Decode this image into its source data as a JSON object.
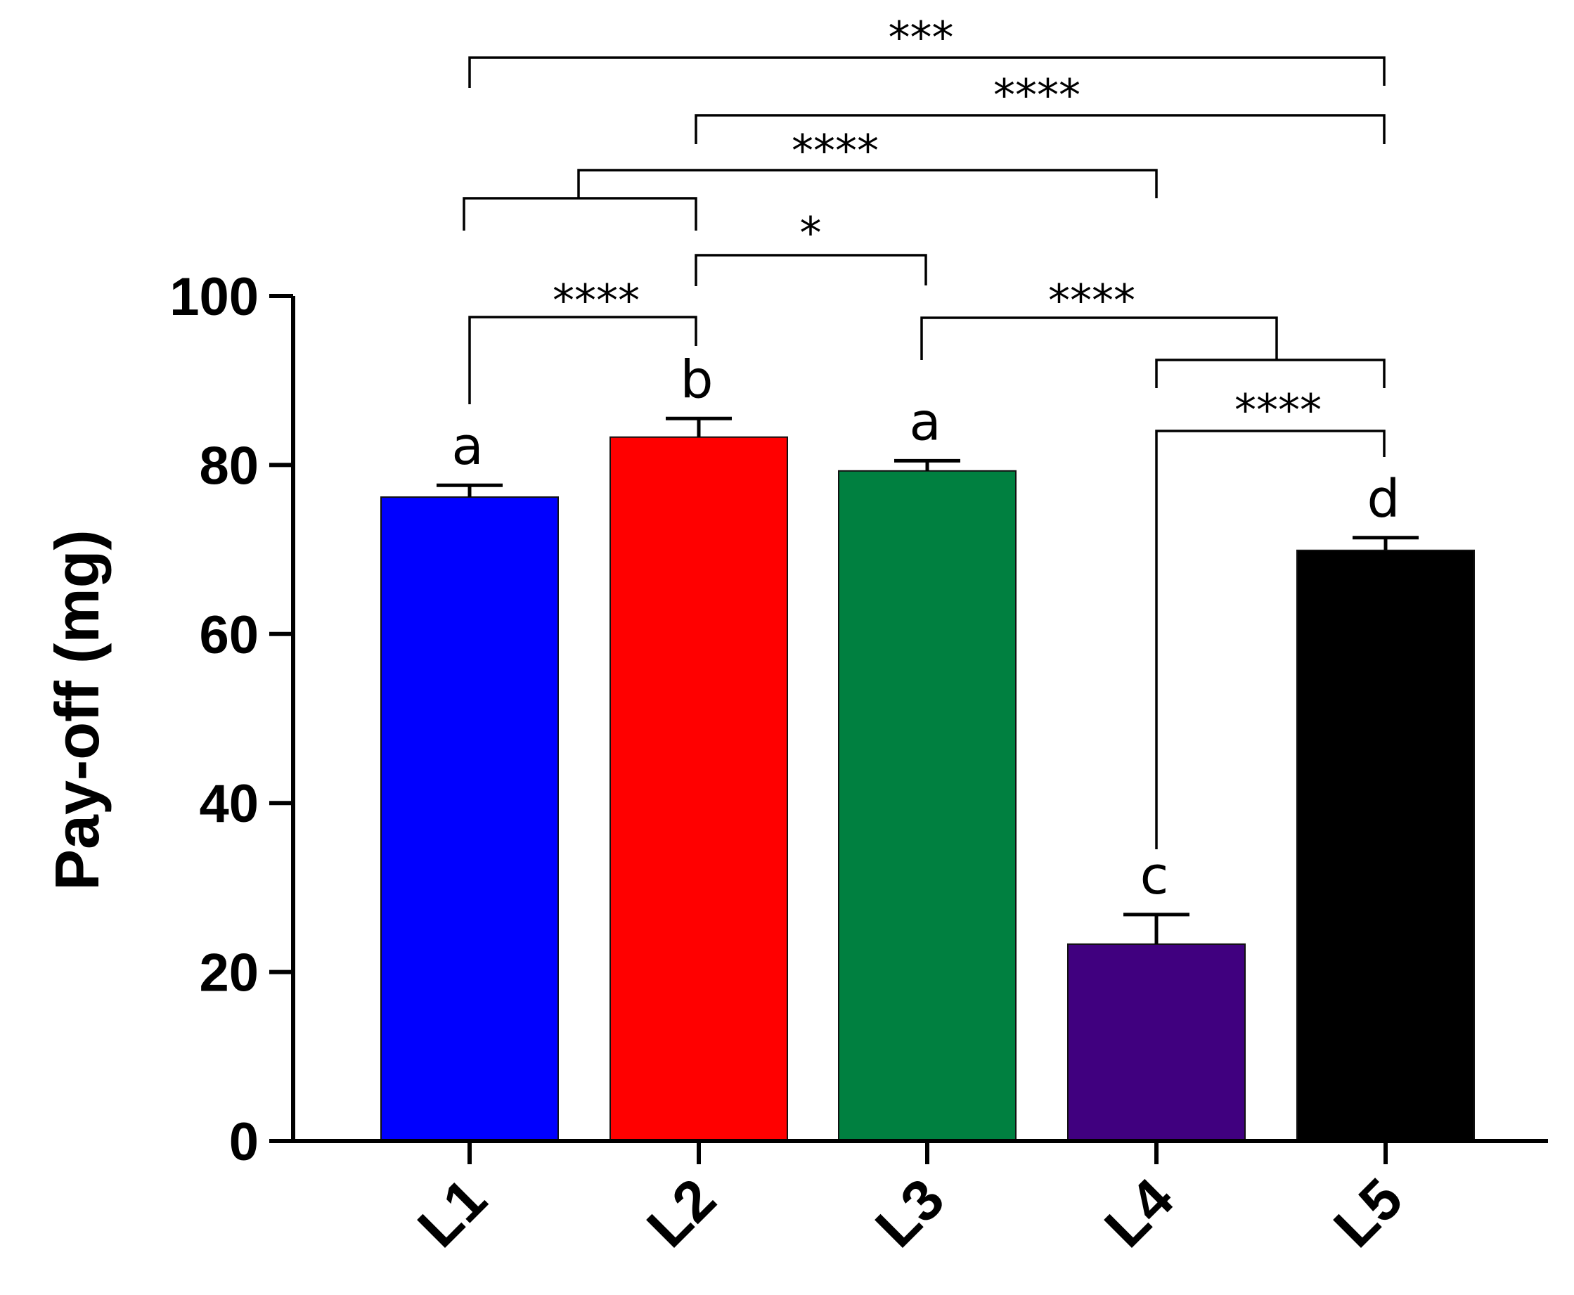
{
  "chart_data": {
    "type": "bar",
    "title": "",
    "xlabel": "",
    "ylabel": "Pay-off (mg)",
    "ylim": [
      0,
      100
    ],
    "yticks": [
      "0",
      "20",
      "40",
      "60",
      "80",
      "100"
    ],
    "categories": [
      "L1",
      "L2",
      "L3",
      "L4",
      "L5"
    ],
    "values": [
      76.2,
      83.3,
      79.3,
      23.3,
      69.9
    ],
    "errors": [
      1.4,
      2.2,
      1.2,
      3.5,
      1.5
    ],
    "colors": [
      "#0000ff",
      "#ff0000",
      "#008040",
      "#40007f",
      "#000000"
    ],
    "letters": [
      "a",
      "b",
      "a",
      "c",
      "d"
    ],
    "comparisons": [
      {
        "from": "L1",
        "to": "L5",
        "label": "***"
      },
      {
        "from": "L2",
        "to": "L5",
        "label": "****"
      },
      {
        "from": "L1+L2",
        "to": "L4",
        "label": "****"
      },
      {
        "from": "L2",
        "to": "L3",
        "label": "*"
      },
      {
        "from": "L1",
        "to": "L2",
        "label": "****"
      },
      {
        "from": "L3",
        "to": "L4+L5",
        "label": "****"
      },
      {
        "from": "L4",
        "to": "L5",
        "label": "****"
      }
    ],
    "grid": false,
    "legend": "none"
  }
}
